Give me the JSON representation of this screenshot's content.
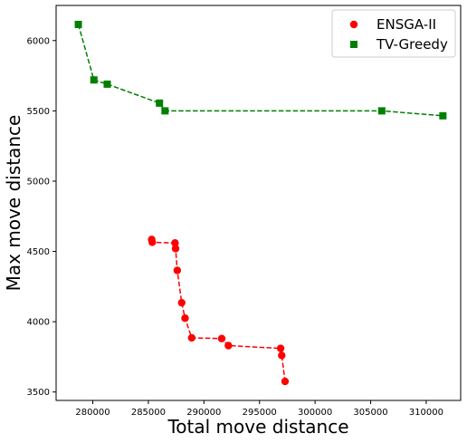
{
  "colors": {
    "ensga": "#ff0000",
    "tvgreedy": "#008000",
    "axis": "#000000",
    "legend_border": "#cccccc"
  },
  "chart_data": {
    "type": "scatter",
    "xlabel": "Total move distance",
    "ylabel": "Max move distance",
    "xlim": [
      276700,
      313100
    ],
    "ylim": [
      3440,
      6250
    ],
    "xticks": [
      280000,
      285000,
      290000,
      295000,
      300000,
      305000,
      310000
    ],
    "xtick_labels": [
      "280000",
      "285000",
      "290000",
      "295000",
      "300000",
      "305000",
      "310000"
    ],
    "yticks": [
      3500,
      4000,
      4500,
      5000,
      5500,
      6000
    ],
    "ytick_labels": [
      "3500",
      "4000",
      "4500",
      "5000",
      "5500",
      "6000"
    ],
    "grid": false,
    "legend_position": "top-right",
    "series": [
      {
        "name": "ENSGA-II",
        "marker": "circle",
        "linestyle": "dashed",
        "color": "#ff0000",
        "x": [
          285300,
          285350,
          287400,
          287450,
          287600,
          288000,
          288300,
          288900,
          291600,
          292200,
          296900,
          297000,
          297300
        ],
        "y": [
          4585,
          4565,
          4560,
          4520,
          4365,
          4135,
          4025,
          3885,
          3880,
          3830,
          3810,
          3760,
          3575
        ]
      },
      {
        "name": "TV-Greedy",
        "marker": "square",
        "linestyle": "dashed",
        "color": "#008000",
        "x": [
          278700,
          280100,
          281300,
          286000,
          286500,
          306000,
          311500
        ],
        "y": [
          6115,
          5720,
          5690,
          5555,
          5500,
          5500,
          5465
        ]
      }
    ]
  }
}
